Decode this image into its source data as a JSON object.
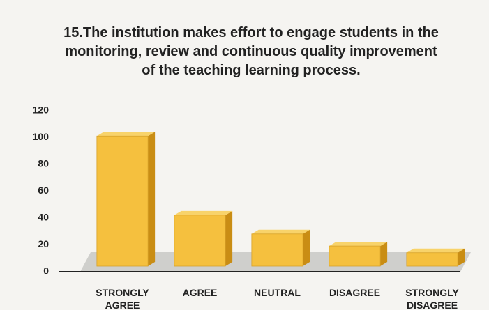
{
  "chart_data": {
    "type": "bar3d",
    "title": "15.The institution makes effort to engage students in the monitoring, review and continuous quality improvement of the teaching learning process.",
    "categories": [
      "STRONGLY AGREE",
      "AGREE",
      "NEUTRAL",
      "DISAGREE",
      "STRONGLY DISAGREE"
    ],
    "values": [
      97,
      38,
      24,
      15,
      10
    ],
    "color": "#f5c03e",
    "ylim": [
      0,
      120
    ],
    "yticks": [
      0,
      20,
      40,
      60,
      80,
      100,
      120
    ],
    "grid": false
  }
}
